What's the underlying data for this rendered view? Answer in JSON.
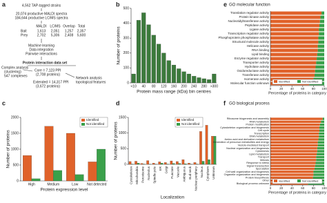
{
  "panel_a": {
    "label": "a",
    "lines": [
      "4,562 TAP-tagged strains",
      "20,074 productive MALDI spectra",
      "184,644 productive LC/MS spectra"
    ],
    "table": {
      "header": [
        "MALDI",
        "LC/MS",
        "Overlap",
        "Total"
      ],
      "rows": [
        [
          "Bait",
          "1,613",
          "2,051",
          "1,257",
          "2,357"
        ],
        [
          "Prey",
          "2,702",
          "5,306",
          "2,408",
          "5,600"
        ]
      ]
    },
    "steps": [
      "Machine learning",
      "Data integration",
      "Pairwise interactions"
    ],
    "dataset": "Protein interaction data set",
    "core": "Core = 7,123 PPI",
    "core_sub": "(2,708 proteins)",
    "extended": "Extended = 14,317 PPI",
    "extended_sub": "(3,672 proteins)",
    "complex": [
      "Complex analysis",
      "(clustering)",
      "547 complexes"
    ],
    "network": [
      "Network analysis",
      "topological features"
    ]
  },
  "chart_data": [
    {
      "panel": "b",
      "type": "bar",
      "xlabel": "Protein mass range (kDa) bin centres",
      "ylabel": "Number of proteins",
      "color": "#3c7a3c",
      "categories": [
        "<10",
        null,
        "40",
        null,
        "80",
        null,
        "120",
        null,
        "160",
        null,
        "200",
        null,
        "240",
        null,
        "280",
        null,
        ">300"
      ],
      "values": [
        60,
        420,
        470,
        390,
        320,
        260,
        200,
        150,
        120,
        95,
        75,
        60,
        45,
        35,
        28,
        22,
        60
      ],
      "ylim": [
        0,
        500
      ],
      "yticks": [
        0,
        100,
        200,
        300,
        400,
        500
      ]
    },
    {
      "panel": "e",
      "type": "barh_stacked",
      "title": "GO molecular function",
      "xlabel": "Percentage of proteins in category",
      "legend": "bottom",
      "categories": [
        "Translation regulator activity",
        "Protein kinase activity",
        "Nucleotidyltransferase activity",
        "Peptidase activity",
        "Ligase activity",
        "Transcription regulator activity",
        "Phosphoprotein phosphatase activity",
        "Structural molecule activity",
        "Helicase activity",
        "RNA binding",
        "Lipid binding",
        "Enzyme regulator activity",
        "Transporter activity",
        "Hydrolase activity",
        "Oxidoreductase activity",
        "Transferase activity",
        "Isomerase activity",
        "Molecular function unknown"
      ],
      "series": [
        {
          "name": "Identified",
          "color": "#e0622a",
          "values": [
            95,
            93,
            92,
            91,
            90,
            90,
            89,
            89,
            88,
            88,
            87,
            86,
            85,
            84,
            83,
            82,
            80,
            72
          ]
        },
        {
          "name": "Not identified",
          "color": "#3aa04a",
          "values": [
            5,
            7,
            8,
            9,
            10,
            10,
            11,
            11,
            12,
            12,
            13,
            14,
            15,
            16,
            17,
            18,
            20,
            28
          ]
        }
      ],
      "xlim": [
        0,
        100
      ],
      "xticks": [
        0,
        20,
        40,
        60,
        80,
        100
      ]
    },
    {
      "panel": "c",
      "type": "bar",
      "xlabel": "Protein expression level",
      "ylabel": "Number of proteins",
      "legend": "upper right",
      "categories": [
        "High",
        "Medium",
        "Low",
        "Not detected"
      ],
      "series": [
        {
          "name": "Identified",
          "color": "#e0622a",
          "values": [
            800,
            1720,
            1500,
            600
          ]
        },
        {
          "name": "Not identified",
          "color": "#3aa04a",
          "values": [
            70,
            330,
            200,
            1000
          ]
        }
      ],
      "ylim": [
        0,
        2000
      ],
      "yticks": [
        0,
        500,
        1000,
        1500,
        2000
      ]
    },
    {
      "panel": "d",
      "type": "bar",
      "xlabel": "Localization",
      "ylabel": "Number of proteins",
      "legend": "upper left",
      "rotate": true,
      "categories": [
        "Cytoskeleton",
        "Mitochondria",
        "Peroxisome",
        "Nucleolus",
        "Spindle pole",
        "ER",
        "Golgi",
        "Punctate",
        "Vacuole",
        "Ambiguous",
        "Bud neck",
        "Nuclear periphery",
        "Nucleus",
        "Cytoplasm",
        "Unknown"
      ],
      "series": [
        {
          "name": "Identified",
          "color": "#e0622a",
          "values": [
            90,
            100,
            30,
            120,
            40,
            80,
            60,
            110,
            90,
            150,
            40,
            60,
            1050,
            1250,
            900
          ]
        },
        {
          "name": "Not identified",
          "color": "#3aa04a",
          "values": [
            10,
            40,
            10,
            5,
            5,
            40,
            10,
            30,
            30,
            20,
            5,
            10,
            100,
            150,
            900
          ]
        }
      ],
      "ylim": [
        0,
        1500
      ],
      "yticks": [
        0,
        500,
        1000,
        1500
      ]
    },
    {
      "panel": "f",
      "type": "barh_stacked",
      "title": "GO biological process",
      "xlabel": "Percentage of proteins in category",
      "legend": "bottom",
      "categories": [
        "Ribosome biogenesis and assembly",
        "RNA metabolism",
        "Protein modification",
        "Cytoskeleton organization and biogenesis",
        "Cell cycle",
        "Transcription",
        "DNA metabolism",
        "Amino acid and derivative metabolism",
        "Generation of precursor metabolites and energy",
        "Vesicle-mediated transport",
        "Nuclear organization and biogenesis",
        "Cytokinesis",
        "Lipid metabolism",
        "Transport",
        "Meiosis",
        "Response to stress",
        "Signal transduction",
        "Sporulation",
        "Cell wall organization and biogenesis",
        "Organelle organization and biogenesis",
        "Protein biosynthesis",
        "Other",
        "Biological process unknown"
      ],
      "series": [
        {
          "name": "Identified",
          "color": "#e0622a",
          "values": [
            97,
            94,
            92,
            91,
            91,
            90,
            90,
            89,
            88,
            88,
            87,
            87,
            86,
            85,
            85,
            84,
            83,
            82,
            80,
            80,
            79,
            78,
            70
          ]
        },
        {
          "name": "Not identified",
          "color": "#3aa04a",
          "values": [
            3,
            6,
            8,
            9,
            9,
            10,
            10,
            11,
            12,
            12,
            13,
            13,
            14,
            15,
            15,
            16,
            17,
            18,
            20,
            20,
            21,
            22,
            30
          ]
        }
      ],
      "xlim": [
        0,
        100
      ],
      "xticks": [
        0,
        20,
        40,
        60,
        80,
        100
      ]
    }
  ]
}
